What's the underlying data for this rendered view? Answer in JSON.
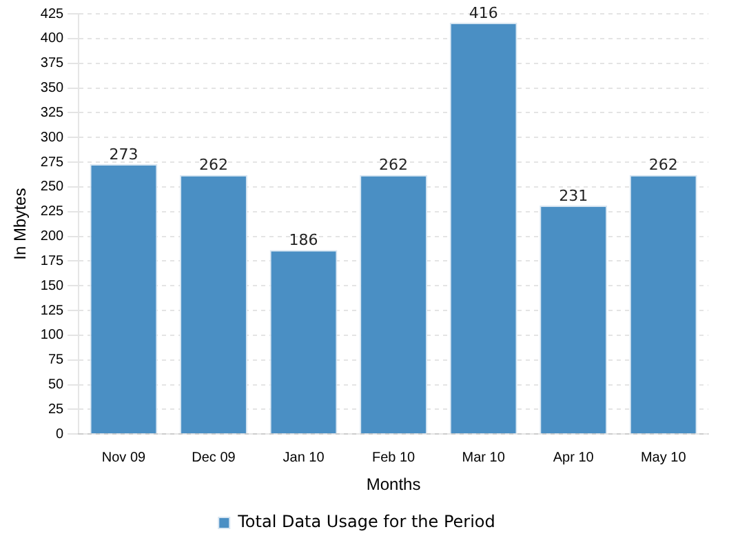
{
  "chart_data": {
    "type": "bar",
    "xlabel": "Months",
    "ylabel": "In Mbytes",
    "categories": [
      "Nov 09",
      "Dec 09",
      "Jan 10",
      "Feb 10",
      "Mar 10",
      "Apr 10",
      "May 10"
    ],
    "series": [
      {
        "name": "Total Data Usage for the Period",
        "color": "#4a8fc4",
        "values": [
          273,
          262,
          186,
          262,
          416,
          231,
          262
        ]
      }
    ],
    "ylim": [
      0,
      425
    ],
    "yticks": [
      0,
      25,
      50,
      75,
      100,
      125,
      150,
      175,
      200,
      225,
      250,
      275,
      300,
      325,
      350,
      375,
      400,
      425
    ],
    "grid": "y",
    "legend": "bottom",
    "data_labels": true
  }
}
